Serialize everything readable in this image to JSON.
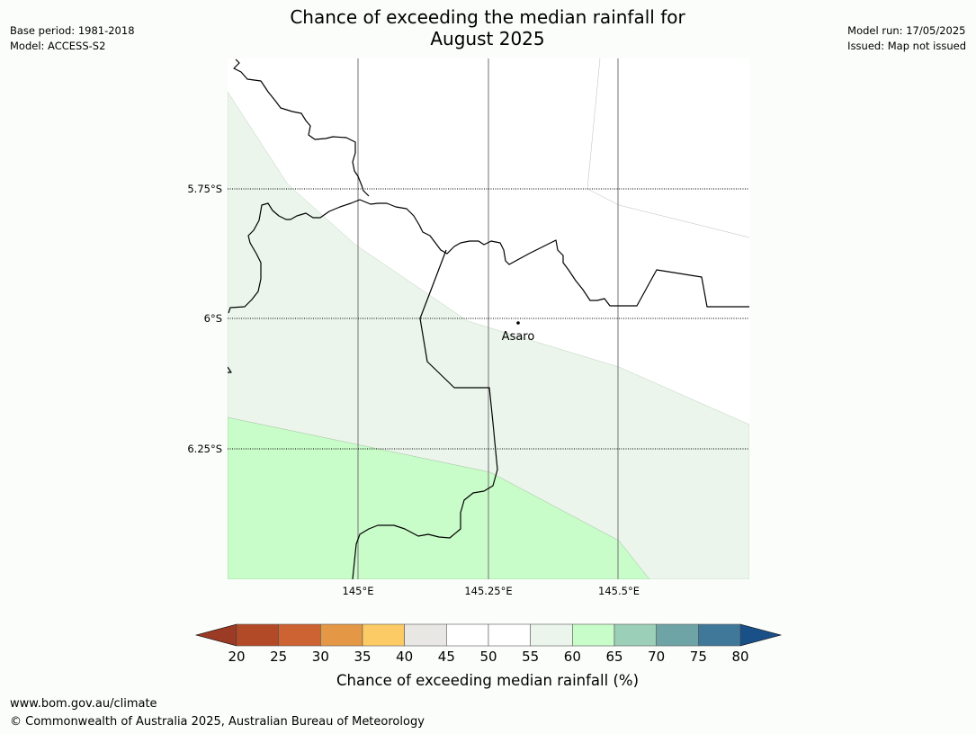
{
  "header": {
    "title_line1": "Chance of exceeding the median rainfall for",
    "title_line2": "August 2025",
    "base_period": "Base period: 1981-2018",
    "model": "Model: ACCESS-S2",
    "model_run": "Model run: 17/05/2025",
    "issued": "Issued: Map not issued"
  },
  "map": {
    "lat_labels": [
      "5.75°S",
      "6°S",
      "6.25°S"
    ],
    "lon_labels": [
      "145°E",
      "145.25°E",
      "145.5°E"
    ],
    "town": {
      "name": "Asaro"
    },
    "colors": {
      "zone_55_60": "#ebf5eb",
      "zone_60_65": "#c8fcc8",
      "background": "#ffffff"
    }
  },
  "colorbar": {
    "label": "Chance of exceeding median rainfall (%)",
    "ticks": [
      "20",
      "25",
      "30",
      "35",
      "40",
      "45",
      "50",
      "55",
      "60",
      "65",
      "70",
      "75",
      "80"
    ],
    "colors": [
      "#b34a27",
      "#cd6332",
      "#e49845",
      "#fdcb65",
      "#e9e7e3",
      "#ffffff",
      "#ffffff",
      "#ebf5eb",
      "#c8fcc8",
      "#9ccfb8",
      "#6fa4a6",
      "#3f7899"
    ],
    "under_color": "#9b3a25",
    "over_color": "#1a5088"
  },
  "footer": {
    "url": "www.bom.gov.au/climate",
    "copyright": "© Commonwealth of Australia 2025, Australian Bureau of Meteorology"
  }
}
